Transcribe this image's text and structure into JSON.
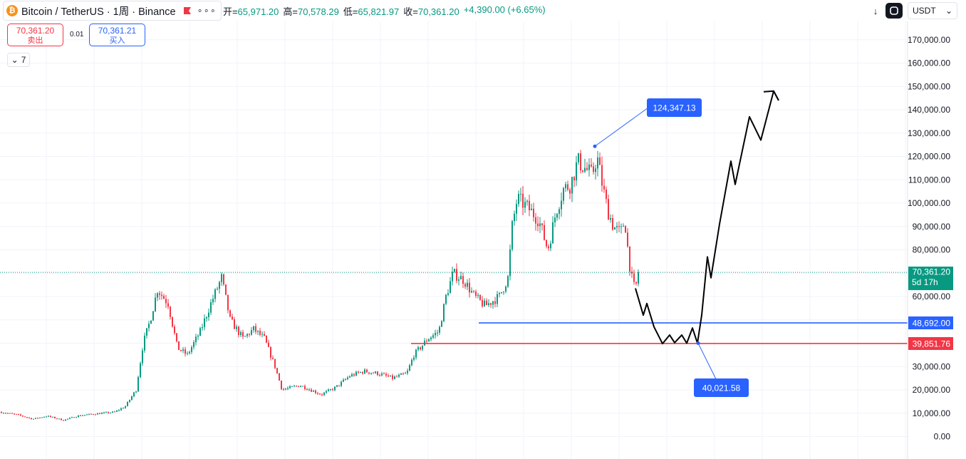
{
  "header": {
    "symbol": "Bitcoin / TetherUS · 1周 · Binance",
    "ohlc": [
      {
        "label": "开=",
        "value": "65,971.20"
      },
      {
        "label": "高=",
        "value": "70,578.29"
      },
      {
        "label": "低=",
        "value": "65,821.97"
      },
      {
        "label": "收=",
        "value": "70,361.20"
      },
      {
        "label": "",
        "value": "+4,390.00 (+6.65%)"
      }
    ],
    "more_icon": "ellipsis-icon"
  },
  "trade": {
    "sell_price": "70,361.20",
    "sell_label": "卖出",
    "spread": "0.01",
    "buy_price": "70,361.21",
    "buy_label": "买入",
    "indicators_count": "7"
  },
  "toolbar": {
    "currency": "USDT",
    "download_icon": "download-icon",
    "fullscreen_icon": "fullscreen-icon"
  },
  "colors": {
    "up": "#089981",
    "down": "#f23645",
    "blue_line": "#2962ff",
    "red_line": "#f23645",
    "price_line": "#089981",
    "path": "#000000"
  },
  "chart_data": {
    "type": "candlestick",
    "timeframe": "1周",
    "y_ticks": [
      0,
      10000,
      20000,
      30000,
      40000,
      50000,
      60000,
      70000,
      80000,
      90000,
      100000,
      110000,
      120000,
      130000,
      140000,
      150000,
      160000,
      170000
    ],
    "y_tick_labels": [
      "0.00",
      "10,000.00",
      "20,000.00",
      "30,000.00",
      "40,000.00",
      "50,000.00",
      "60,000.00",
      "70,000.00",
      "80,000.00",
      "90,000.00",
      "100,000.00",
      "110,000.00",
      "120,000.00",
      "130,000.00",
      "140,000.00",
      "150,000.00",
      "160,000.00",
      "170,000.00"
    ],
    "ylim": [
      -10000,
      180000
    ],
    "grid": true,
    "last_price": {
      "value": 70361.2,
      "label": "70,361.20",
      "countdown": "5d 17h"
    },
    "horizontal_lines": [
      {
        "value": 48692.0,
        "label": "48,692.00",
        "color": "#2962ff"
      },
      {
        "value": 39851.76,
        "label": "39,851.76",
        "color": "#f23645"
      }
    ],
    "callouts": [
      {
        "value": 124347.13,
        "label": "124,347.13"
      },
      {
        "value": 40021.58,
        "label": "40,021.58"
      }
    ],
    "price_path_anchors": [
      [
        0,
        10500
      ],
      [
        25,
        9200
      ],
      [
        45,
        7500
      ],
      [
        65,
        8800
      ],
      [
        88,
        7000
      ],
      [
        110,
        9000
      ],
      [
        135,
        9800
      ],
      [
        160,
        10500
      ],
      [
        175,
        13000
      ],
      [
        190,
        20000
      ],
      [
        200,
        40000
      ],
      [
        210,
        50000
      ],
      [
        220,
        63000
      ],
      [
        235,
        57000
      ],
      [
        248,
        38000
      ],
      [
        262,
        35000
      ],
      [
        280,
        45000
      ],
      [
        295,
        57000
      ],
      [
        310,
        68000
      ],
      [
        322,
        50000
      ],
      [
        340,
        42000
      ],
      [
        355,
        46000
      ],
      [
        370,
        42000
      ],
      [
        385,
        30000
      ],
      [
        395,
        20000
      ],
      [
        420,
        22000
      ],
      [
        450,
        18000
      ],
      [
        470,
        21000
      ],
      [
        490,
        26000
      ],
      [
        510,
        28000
      ],
      [
        530,
        27000
      ],
      [
        550,
        25000
      ],
      [
        570,
        27000
      ],
      [
        580,
        35000
      ],
      [
        600,
        42000
      ],
      [
        615,
        45000
      ],
      [
        625,
        60000
      ],
      [
        635,
        70000
      ],
      [
        650,
        67000
      ],
      [
        665,
        60000
      ],
      [
        680,
        56000
      ],
      [
        700,
        60000
      ],
      [
        712,
        68000
      ],
      [
        718,
        90000
      ],
      [
        725,
        102000
      ],
      [
        740,
        98000
      ],
      [
        755,
        93000
      ],
      [
        768,
        80000
      ],
      [
        780,
        97000
      ],
      [
        790,
        106000
      ],
      [
        800,
        108000
      ],
      [
        810,
        118000
      ],
      [
        820,
        115000
      ],
      [
        830,
        112000
      ],
      [
        837,
        120000
      ],
      [
        845,
        107000
      ],
      [
        852,
        97000
      ],
      [
        860,
        90000
      ],
      [
        870,
        87000
      ],
      [
        876,
        93000
      ],
      [
        882,
        75000
      ],
      [
        888,
        64000
      ],
      [
        896,
        66000
      ]
    ],
    "projection_path": [
      [
        892,
        63500
      ],
      [
        903,
        52000
      ],
      [
        908,
        57000
      ],
      [
        918,
        47000
      ],
      [
        930,
        39800
      ],
      [
        940,
        43500
      ],
      [
        947,
        40200
      ],
      [
        957,
        43500
      ],
      [
        964,
        40000
      ],
      [
        972,
        46500
      ],
      [
        979,
        40021.58
      ],
      [
        985,
        52000
      ],
      [
        993,
        77000
      ],
      [
        998,
        68000
      ],
      [
        1010,
        91000
      ],
      [
        1026,
        118000
      ],
      [
        1032,
        108000
      ],
      [
        1052,
        137000
      ],
      [
        1068,
        127000
      ],
      [
        1086,
        148000
      ],
      [
        1093,
        144000
      ]
    ]
  }
}
